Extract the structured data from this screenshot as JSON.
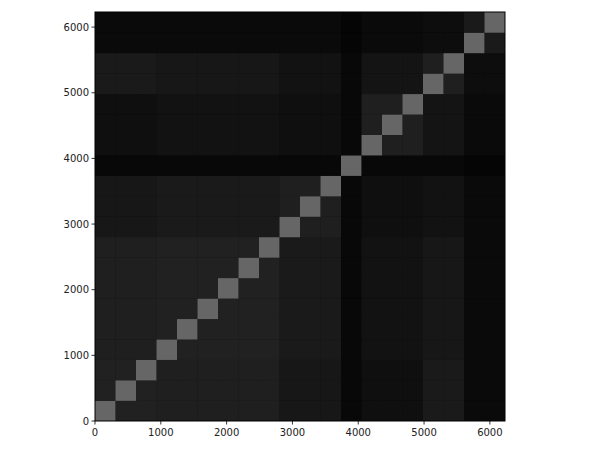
{
  "chart_data": {
    "type": "heatmap",
    "xlim": [
      0,
      6230
    ],
    "ylim": [
      0,
      6230
    ],
    "xticks": [
      0,
      1000,
      2000,
      3000,
      4000,
      5000,
      6000
    ],
    "yticks": [
      0,
      1000,
      2000,
      3000,
      4000,
      5000,
      6000
    ],
    "grid": false,
    "cells": [
      [
        0.4,
        0.13,
        0.13,
        0.12,
        0.12,
        0.12,
        0.12,
        0.12,
        0.12,
        0.09,
        0.09,
        0.09,
        0.03,
        0.06,
        0.06,
        0.06,
        0.1,
        0.1,
        0.04,
        0.04
      ],
      [
        0.13,
        0.4,
        0.13,
        0.12,
        0.12,
        0.12,
        0.12,
        0.12,
        0.12,
        0.09,
        0.09,
        0.09,
        0.03,
        0.06,
        0.06,
        0.06,
        0.1,
        0.1,
        0.04,
        0.04
      ],
      [
        0.13,
        0.13,
        0.4,
        0.12,
        0.12,
        0.12,
        0.12,
        0.12,
        0.12,
        0.09,
        0.09,
        0.09,
        0.03,
        0.06,
        0.06,
        0.06,
        0.1,
        0.1,
        0.04,
        0.04
      ],
      [
        0.12,
        0.12,
        0.12,
        0.4,
        0.13,
        0.13,
        0.13,
        0.13,
        0.13,
        0.1,
        0.1,
        0.1,
        0.03,
        0.07,
        0.07,
        0.07,
        0.09,
        0.09,
        0.04,
        0.04
      ],
      [
        0.12,
        0.12,
        0.12,
        0.13,
        0.4,
        0.13,
        0.13,
        0.13,
        0.13,
        0.1,
        0.1,
        0.1,
        0.03,
        0.07,
        0.07,
        0.07,
        0.09,
        0.09,
        0.04,
        0.04
      ],
      [
        0.12,
        0.12,
        0.12,
        0.13,
        0.13,
        0.4,
        0.13,
        0.13,
        0.13,
        0.1,
        0.1,
        0.1,
        0.03,
        0.07,
        0.07,
        0.07,
        0.09,
        0.09,
        0.04,
        0.04
      ],
      [
        0.12,
        0.12,
        0.12,
        0.13,
        0.13,
        0.13,
        0.4,
        0.13,
        0.13,
        0.1,
        0.1,
        0.1,
        0.03,
        0.07,
        0.07,
        0.07,
        0.09,
        0.09,
        0.04,
        0.04
      ],
      [
        0.12,
        0.12,
        0.12,
        0.13,
        0.13,
        0.13,
        0.13,
        0.4,
        0.13,
        0.1,
        0.1,
        0.1,
        0.03,
        0.07,
        0.07,
        0.07,
        0.09,
        0.09,
        0.04,
        0.04
      ],
      [
        0.12,
        0.12,
        0.12,
        0.13,
        0.13,
        0.13,
        0.13,
        0.13,
        0.4,
        0.1,
        0.1,
        0.1,
        0.03,
        0.07,
        0.07,
        0.07,
        0.09,
        0.09,
        0.04,
        0.04
      ],
      [
        0.09,
        0.09,
        0.09,
        0.1,
        0.1,
        0.1,
        0.1,
        0.1,
        0.1,
        0.4,
        0.12,
        0.12,
        0.03,
        0.06,
        0.06,
        0.06,
        0.07,
        0.07,
        0.04,
        0.04
      ],
      [
        0.09,
        0.09,
        0.09,
        0.1,
        0.1,
        0.1,
        0.1,
        0.1,
        0.1,
        0.12,
        0.4,
        0.12,
        0.03,
        0.06,
        0.06,
        0.06,
        0.07,
        0.07,
        0.04,
        0.04
      ],
      [
        0.09,
        0.09,
        0.09,
        0.1,
        0.1,
        0.1,
        0.1,
        0.1,
        0.1,
        0.12,
        0.12,
        0.4,
        0.03,
        0.06,
        0.06,
        0.06,
        0.07,
        0.07,
        0.04,
        0.04
      ],
      [
        0.03,
        0.03,
        0.03,
        0.03,
        0.03,
        0.03,
        0.03,
        0.03,
        0.03,
        0.03,
        0.03,
        0.03,
        0.4,
        0.03,
        0.03,
        0.03,
        0.03,
        0.03,
        0.02,
        0.02
      ],
      [
        0.06,
        0.06,
        0.06,
        0.07,
        0.07,
        0.07,
        0.07,
        0.07,
        0.07,
        0.06,
        0.06,
        0.06,
        0.03,
        0.4,
        0.12,
        0.12,
        0.08,
        0.08,
        0.04,
        0.04
      ],
      [
        0.06,
        0.06,
        0.06,
        0.07,
        0.07,
        0.07,
        0.07,
        0.07,
        0.07,
        0.06,
        0.06,
        0.06,
        0.03,
        0.12,
        0.4,
        0.12,
        0.08,
        0.08,
        0.04,
        0.04
      ],
      [
        0.06,
        0.06,
        0.06,
        0.07,
        0.07,
        0.07,
        0.07,
        0.07,
        0.07,
        0.06,
        0.06,
        0.06,
        0.03,
        0.12,
        0.12,
        0.4,
        0.08,
        0.08,
        0.04,
        0.04
      ],
      [
        0.1,
        0.1,
        0.1,
        0.09,
        0.09,
        0.09,
        0.09,
        0.09,
        0.09,
        0.07,
        0.07,
        0.07,
        0.03,
        0.08,
        0.08,
        0.08,
        0.4,
        0.12,
        0.05,
        0.05
      ],
      [
        0.1,
        0.1,
        0.1,
        0.09,
        0.09,
        0.09,
        0.09,
        0.09,
        0.09,
        0.07,
        0.07,
        0.07,
        0.03,
        0.08,
        0.08,
        0.08,
        0.12,
        0.4,
        0.05,
        0.05
      ],
      [
        0.04,
        0.04,
        0.04,
        0.04,
        0.04,
        0.04,
        0.04,
        0.04,
        0.04,
        0.04,
        0.04,
        0.04,
        0.02,
        0.04,
        0.04,
        0.04,
        0.05,
        0.05,
        0.4,
        0.1
      ],
      [
        0.04,
        0.04,
        0.04,
        0.04,
        0.04,
        0.04,
        0.04,
        0.04,
        0.04,
        0.04,
        0.04,
        0.04,
        0.02,
        0.04,
        0.04,
        0.04,
        0.05,
        0.05,
        0.1,
        0.4
      ]
    ]
  }
}
